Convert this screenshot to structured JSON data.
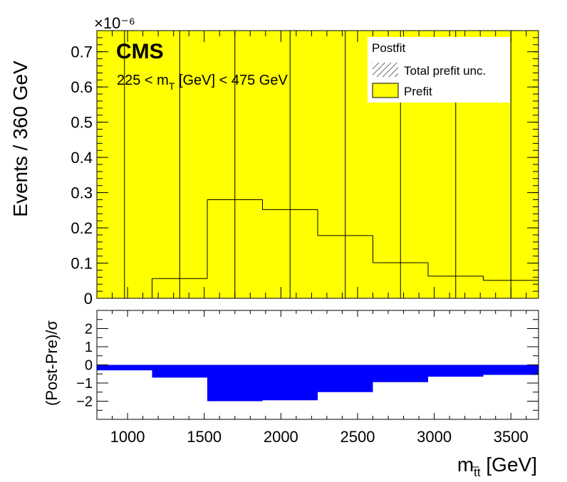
{
  "chart_data": [
    {
      "type": "histogram",
      "exponent_label": "×10⁻⁶",
      "ylabel": "Events / 360 GeV",
      "brand": "CMS",
      "annotation_pre": "225 < m",
      "annotation_sub": "T",
      "annotation_post": " [GeV] < 475 GeV",
      "xlim": [
        800,
        3680
      ],
      "ylim": [
        0,
        0.76
      ],
      "yticks": [
        "0",
        "0.1",
        "0.2",
        "0.3",
        "0.4",
        "0.5",
        "0.6",
        "0.7"
      ],
      "bin_edges": [
        800,
        1160,
        1520,
        1880,
        2240,
        2600,
        2960,
        3320,
        3680
      ],
      "series": [
        {
          "name": "Prefit",
          "values": [
            0.0,
            0.056,
            0.28,
            0.252,
            0.178,
            0.101,
            0.063,
            0.051
          ],
          "color": "#ffff00"
        }
      ],
      "legend": {
        "title": "Postfit",
        "entries": [
          {
            "label": "Total prefit unc.",
            "style": "hatched"
          },
          {
            "label": "Prefit",
            "style": "filled",
            "color": "#ffff00"
          }
        ],
        "position": "top-right"
      }
    },
    {
      "type": "histogram",
      "ylabel": "(Post-Pre)/σ",
      "xlabel_main": "m",
      "xlabel_sub": "t̅t",
      "xlabel_unit": " [GeV]",
      "xlim": [
        800,
        3680
      ],
      "ylim": [
        -3,
        3
      ],
      "yticks": [
        "−2",
        "−1",
        "0",
        "1",
        "2"
      ],
      "xticks": [
        "1000",
        "1500",
        "2000",
        "2500",
        "3000",
        "3500"
      ],
      "bin_edges": [
        800,
        1160,
        1520,
        1880,
        2240,
        2600,
        2960,
        3320,
        3680
      ],
      "series": [
        {
          "name": "(Post-Pre)/σ",
          "values": [
            -0.3,
            -0.7,
            -2.0,
            -1.95,
            -1.5,
            -0.95,
            -0.65,
            -0.55
          ],
          "color": "#0000ff"
        }
      ]
    }
  ]
}
